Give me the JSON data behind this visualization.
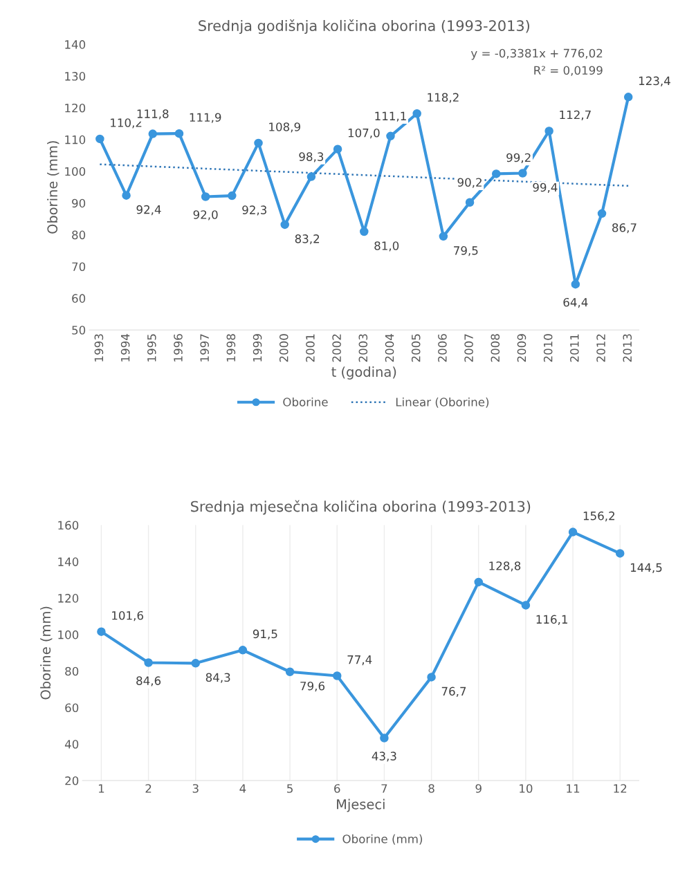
{
  "chart_data": [
    {
      "type": "line",
      "title": "Srednja godišnja količina oborina (1993-2013)",
      "xlabel": "t (godina)",
      "ylabel": "Oborine (mm)",
      "categories": [
        "1993",
        "1994",
        "1995",
        "1996",
        "1997",
        "1998",
        "1999",
        "2000",
        "2001",
        "2002",
        "2003",
        "2004",
        "2005",
        "2006",
        "2007",
        "2008",
        "2009",
        "2010",
        "2011",
        "2012",
        "2013"
      ],
      "series": [
        {
          "name": "Oborine",
          "color": "#3a96dd",
          "marker": "circle",
          "line_style": "solid",
          "values": [
            110.2,
            92.4,
            111.8,
            111.9,
            92.0,
            92.3,
            108.9,
            83.2,
            98.3,
            107.0,
            81.0,
            111.1,
            118.2,
            79.5,
            90.2,
            99.2,
            99.4,
            112.7,
            64.4,
            86.7,
            123.4
          ],
          "value_labels": [
            "110,2",
            "92,4",
            "111,8",
            "111,9",
            "92,0",
            "92,3",
            "108,9",
            "83,2",
            "98,3",
            "107,0",
            "81,0",
            "111,1",
            "118,2",
            "79,5",
            "90,2",
            "99,2",
            "99,4",
            "112,7",
            "64,4",
            "86,7",
            "123,4"
          ]
        },
        {
          "name": "Linear (Oborine)",
          "color": "#2e75b6",
          "marker": "none",
          "line_style": "dotted",
          "values": [
            102.2,
            null,
            null,
            null,
            null,
            null,
            null,
            null,
            null,
            null,
            null,
            null,
            null,
            null,
            null,
            null,
            null,
            null,
            null,
            null,
            95.4
          ]
        }
      ],
      "ylim": [
        50,
        140
      ],
      "yticks": [
        50,
        60,
        70,
        80,
        90,
        100,
        110,
        120,
        130,
        140
      ],
      "grid": false,
      "legend": "bottom",
      "annotations": [
        "y = -0,3381x + 776,02",
        "R² = 0,0199"
      ]
    },
    {
      "type": "line",
      "title": "Srednja mjesečna količina oborina (1993-2013)",
      "xlabel": "Mjeseci",
      "ylabel": "Oborine (mm)",
      "categories": [
        "1",
        "2",
        "3",
        "4",
        "5",
        "6",
        "7",
        "8",
        "9",
        "10",
        "11",
        "12"
      ],
      "series": [
        {
          "name": "Oborine (mm)",
          "color": "#3a96dd",
          "marker": "circle",
          "line_style": "solid",
          "values": [
            101.6,
            84.6,
            84.3,
            91.5,
            79.6,
            77.4,
            43.3,
            76.7,
            128.8,
            116.1,
            156.2,
            144.5
          ],
          "value_labels": [
            "101,6",
            "84,6",
            "84,3",
            "91,5",
            "79,6",
            "77,4",
            "43,3",
            "76,7",
            "128,8",
            "116,1",
            "156,2",
            "144,5"
          ]
        }
      ],
      "ylim": [
        20,
        160
      ],
      "yticks": [
        20,
        40,
        60,
        80,
        100,
        120,
        140,
        160
      ],
      "grid": "x",
      "legend": "bottom"
    }
  ]
}
